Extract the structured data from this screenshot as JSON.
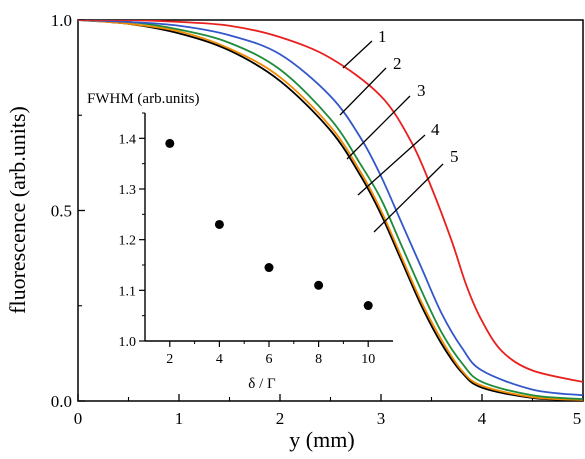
{
  "chart_data": [
    {
      "type": "line",
      "xlabel": "y (mm)",
      "ylabel": "fluorescence (arb.units)",
      "xlim": [
        0,
        5
      ],
      "ylim": [
        0,
        1.0
      ],
      "x_ticks": [
        "0",
        "1",
        "2",
        "3",
        "4",
        "5"
      ],
      "y_ticks": [
        "0.0",
        "0.5",
        "1.0"
      ],
      "series": [
        {
          "name": "1",
          "color": "#e8201e",
          "points": [
            [
              0,
              1.0
            ],
            [
              0.5,
              1.0
            ],
            [
              1.0,
              0.995
            ],
            [
              1.5,
              0.985
            ],
            [
              2.0,
              0.955
            ],
            [
              2.5,
              0.9
            ],
            [
              3.0,
              0.8
            ],
            [
              3.3,
              0.68
            ],
            [
              3.5,
              0.56
            ],
            [
              3.7,
              0.42
            ],
            [
              3.85,
              0.3
            ],
            [
              4.0,
              0.21
            ],
            [
              4.2,
              0.13
            ],
            [
              4.5,
              0.08
            ],
            [
              5.0,
              0.05
            ]
          ]
        },
        {
          "name": "2",
          "color": "#3357c8",
          "points": [
            [
              0,
              1.0
            ],
            [
              0.5,
              0.995
            ],
            [
              1.0,
              0.985
            ],
            [
              1.5,
              0.96
            ],
            [
              2.0,
              0.91
            ],
            [
              2.5,
              0.8
            ],
            [
              2.8,
              0.69
            ],
            [
              3.0,
              0.59
            ],
            [
              3.2,
              0.47
            ],
            [
              3.4,
              0.35
            ],
            [
              3.6,
              0.23
            ],
            [
              3.8,
              0.14
            ],
            [
              4.0,
              0.08
            ],
            [
              4.5,
              0.03
            ],
            [
              5.0,
              0.015
            ]
          ]
        },
        {
          "name": "3",
          "color": "#1e8c3a",
          "points": [
            [
              0,
              1.0
            ],
            [
              0.5,
              0.995
            ],
            [
              1.0,
              0.975
            ],
            [
              1.5,
              0.94
            ],
            [
              2.0,
              0.87
            ],
            [
              2.5,
              0.74
            ],
            [
              2.8,
              0.62
            ],
            [
              3.0,
              0.53
            ],
            [
              3.2,
              0.41
            ],
            [
              3.4,
              0.29
            ],
            [
              3.6,
              0.18
            ],
            [
              3.8,
              0.1
            ],
            [
              4.0,
              0.05
            ],
            [
              4.5,
              0.015
            ],
            [
              5.0,
              0.005
            ]
          ]
        },
        {
          "name": "4",
          "color": "#f08a00",
          "points": [
            [
              0,
              1.0
            ],
            [
              0.5,
              0.99
            ],
            [
              1.0,
              0.97
            ],
            [
              1.5,
              0.925
            ],
            [
              2.0,
              0.85
            ],
            [
              2.5,
              0.72
            ],
            [
              2.8,
              0.6
            ],
            [
              3.0,
              0.5
            ],
            [
              3.2,
              0.38
            ],
            [
              3.4,
              0.26
            ],
            [
              3.6,
              0.16
            ],
            [
              3.8,
              0.08
            ],
            [
              4.0,
              0.04
            ],
            [
              4.5,
              0.01
            ],
            [
              5.0,
              0.003
            ]
          ]
        },
        {
          "name": "5",
          "color": "#000000",
          "points": [
            [
              0,
              1.0
            ],
            [
              0.5,
              0.99
            ],
            [
              1.0,
              0.965
            ],
            [
              1.5,
              0.92
            ],
            [
              2.0,
              0.84
            ],
            [
              2.5,
              0.71
            ],
            [
              2.8,
              0.59
            ],
            [
              3.0,
              0.49
            ],
            [
              3.2,
              0.37
            ],
            [
              3.4,
              0.25
            ],
            [
              3.6,
              0.15
            ],
            [
              3.8,
              0.075
            ],
            [
              4.0,
              0.035
            ],
            [
              4.5,
              0.008
            ],
            [
              5.0,
              0.002
            ]
          ]
        }
      ]
    },
    {
      "type": "scatter",
      "title": "FWHM (arb.units)",
      "xlabel": "δ / Γ",
      "xlim": [
        1,
        11
      ],
      "ylim": [
        1.0,
        1.45
      ],
      "x_ticks": [
        "2",
        "4",
        "6",
        "8",
        "10"
      ],
      "y_ticks": [
        "1.0",
        "1.1",
        "1.2",
        "1.3",
        "1.4"
      ],
      "x": [
        2,
        4,
        6,
        8,
        10
      ],
      "y": [
        1.39,
        1.23,
        1.145,
        1.11,
        1.07
      ]
    }
  ]
}
